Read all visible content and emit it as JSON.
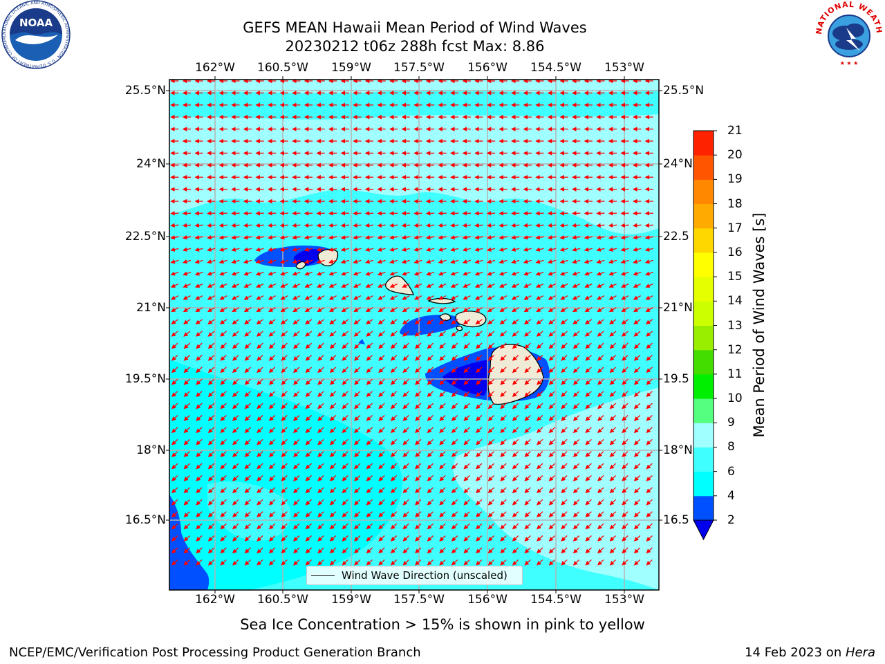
{
  "title_line1": "GEFS MEAN Hawaii Mean Period of Wind Waves",
  "title_line2": "20230212 t06z 288h fcst   Max: 8.86",
  "lon_labels": [
    "162°W",
    "160.5°W",
    "159°W",
    "157.5°W",
    "156°W",
    "154.5°W",
    "153°W"
  ],
  "lat_labels_left": [
    "25.5°N",
    "24°N",
    "22.5°N",
    "21°N",
    "19.5°N",
    "18°N",
    "16.5°N"
  ],
  "lat_labels_right": [
    "25.5°N",
    "24°N",
    "22.5",
    "21°N",
    "19.5",
    "18°N",
    "16.5"
  ],
  "colorbar": {
    "title": "Mean Period of Wind Waves [s]",
    "tick_labels": [
      "2",
      "4",
      "6",
      "8",
      "9",
      "10",
      "11",
      "12",
      "13",
      "14",
      "15",
      "16",
      "17",
      "18",
      "19",
      "20",
      "21"
    ],
    "colors": [
      "#0050ff",
      "#00ffff",
      "#40ffff",
      "#a0ffff",
      "#55ff80",
      "#00ee00",
      "#44dd00",
      "#99ee00",
      "#ccff00",
      "#e6ff00",
      "#ffff00",
      "#ffd700",
      "#ffaa00",
      "#ff8800",
      "#ff5500",
      "#ff2200",
      "#ff0000"
    ],
    "below_color": "#0000ee"
  },
  "legend_label": "Wind Wave Direction (unscaled)",
  "subtitle": "Sea Ice Concentration > 15% is shown in pink to yellow",
  "footer_left": "NCEP/EMC/Verification Post Processing Product Generation Branch",
  "footer_right_prefix": "14 Feb 2023 on ",
  "footer_right_host": "Hera",
  "logos": {
    "noaa_text": "NOAA",
    "noaa_ring_text": "NATIONAL OCEANIC AND ATMOSPHERIC ADMINISTRATION · U.S. DEPARTMENT OF COMMERCE",
    "nws_ring_text": "NATIONAL WEATHER SERVICE"
  },
  "colors": {
    "ocean_base": "#00ffff",
    "ocean_mid": "#40ffff",
    "ocean_light": "#a0ffff",
    "short_period": "#0050ff",
    "shortest_period": "#0000ee",
    "land": "#efebd6",
    "arrow": "#ff0000",
    "grid": "#b4b4b4"
  }
}
